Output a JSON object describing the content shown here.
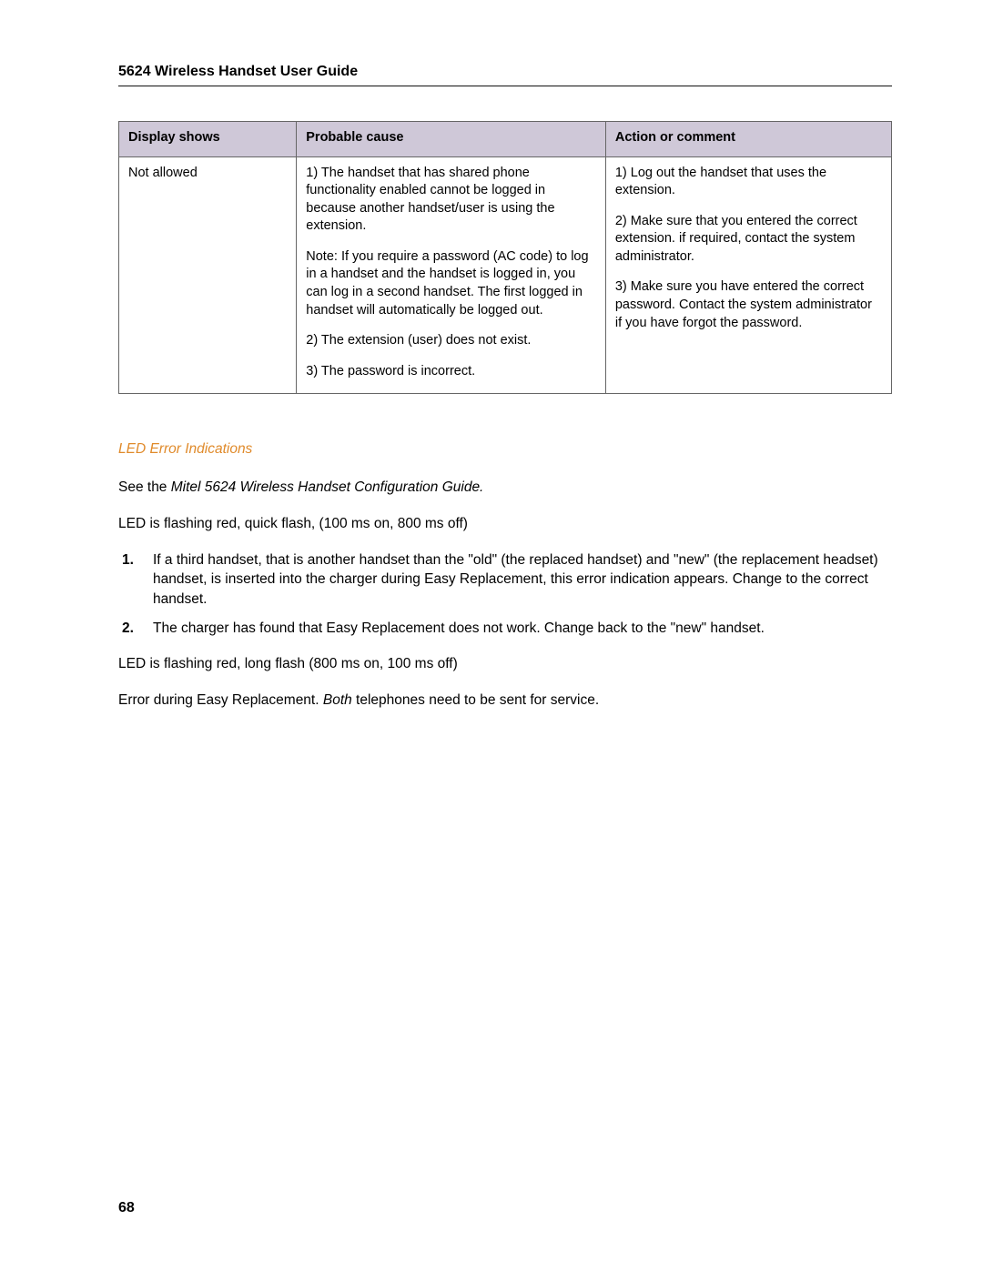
{
  "header": {
    "title": "5624 Wireless Handset User Guide"
  },
  "table": {
    "columns": [
      "Display shows",
      "Probable cause",
      "Action or comment"
    ],
    "col_widths_pct": [
      23,
      40,
      37
    ],
    "header_bg": "#cfc8d8",
    "border_color": "#666666",
    "rows": [
      {
        "display": "Not allowed",
        "cause": {
          "p1": "1) The handset that has shared phone functionality enabled cannot be logged in because another handset/user is using the extension.",
          "p2": "Note: If you require a password (AC code) to log in a handset and the handset is logged in, you can log in a second handset. The first logged in handset will automatically be logged out.",
          "p3": "2) The extension (user) does not exist.",
          "p4": "3) The password is incorrect."
        },
        "action": {
          "p1": "1) Log out the handset that uses the extension.",
          "p2": "2) Make sure that you entered the correct extension. if required, contact the system administrator.",
          "p3": "3) Make sure you have entered the correct password. Contact the system administrator if you have forgot the password."
        }
      }
    ]
  },
  "section": {
    "subhead": "LED Error Indications",
    "see_prefix": "See the ",
    "see_italic": "Mitel 5624 Wireless Handset Configuration Guide.",
    "led_quick": "LED is flashing red, quick flash, (100 ms on, 800 ms off)",
    "steps": [
      "If a third handset, that is another handset than the \"old\" (the replaced handset) and \"new\" (the replacement headset) handset, is inserted into the charger during Easy Replacement, this error indication appears. Change to the correct handset.",
      "The charger has found that Easy Replacement does not work. Change back to the \"new\" handset."
    ],
    "led_long": "LED is flashing red, long flash (800 ms on, 100 ms off)",
    "error_prefix": "Error during Easy Replacement. ",
    "error_italic": "Both",
    "error_suffix": " telephones need to be sent for service."
  },
  "footer": {
    "page_number": "68"
  },
  "style": {
    "accent_color": "#e08a2a",
    "text_color": "#000000",
    "background": "#ffffff",
    "rule_color": "#111111",
    "body_font_size_pt": 11.5,
    "header_font_size_pt": 12
  }
}
